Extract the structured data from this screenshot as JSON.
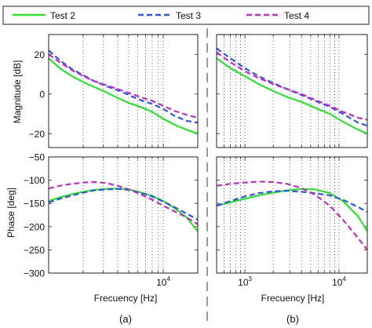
{
  "legend": {
    "placement": "top, across both columns",
    "entries": [
      {
        "label": "Test 2",
        "color": "#33dd33",
        "dash": "solid"
      },
      {
        "label": "Test 3",
        "color": "#3355dd",
        "dash": "dashed"
      },
      {
        "label": "Test 4",
        "color": "#bb33bb",
        "dash": "dashed"
      }
    ]
  },
  "separator": {
    "color": "#999999",
    "style": "dashed vertical"
  },
  "panels": [
    {
      "id": "a",
      "caption": "(a)",
      "xlabel": "Frecuency [Hz]"
    },
    {
      "id": "b",
      "caption": "(b)",
      "xlabel": "Frecuency [Hz]"
    }
  ],
  "chart_data": [
    {
      "panel": "a",
      "row": "magnitude",
      "type": "line",
      "ylabel": "Magnitude [dB]",
      "ylim": [
        -27,
        30
      ],
      "yticks": [
        20,
        0,
        -20
      ],
      "xscale": "log",
      "xlim": [
        1000,
        20000
      ],
      "xtick_labels": [],
      "grid": "dotted vertical",
      "x": [
        1000,
        1250,
        1600,
        2000,
        2500,
        3150,
        4000,
        5000,
        6300,
        8000,
        10000,
        12500,
        16000,
        20000
      ],
      "series": [
        {
          "name": "Test 2",
          "color": "#33dd33",
          "dash": "solid",
          "values": [
            18,
            13,
            9,
            6,
            3.5,
            1,
            -2,
            -4.5,
            -6.5,
            -9,
            -12.5,
            -15.5,
            -18,
            -20
          ]
        },
        {
          "name": "Test 3",
          "color": "#3355dd",
          "dash": "dashed",
          "values": [
            22,
            17,
            12.5,
            9.5,
            6.5,
            4,
            2,
            -0.5,
            -3,
            -5,
            -7.5,
            -11,
            -13.5,
            -14.5
          ]
        },
        {
          "name": "Test 4",
          "color": "#bb33bb",
          "dash": "dashed",
          "values": [
            20,
            16,
            12,
            9,
            6.5,
            4.5,
            2.5,
            0.5,
            -1.5,
            -3.5,
            -6,
            -8.5,
            -10.5,
            -12
          ]
        }
      ]
    },
    {
      "panel": "a",
      "row": "phase",
      "type": "line",
      "ylabel": "Phase [deg]",
      "ylim": [
        -300,
        -50
      ],
      "yticks": [
        -50,
        -100,
        -150,
        -200,
        -250,
        -300
      ],
      "xscale": "log",
      "xlim": [
        1000,
        20000
      ],
      "xtick_labels": [
        {
          "value": 10000,
          "base": "10",
          "exp": "4"
        }
      ],
      "grid": "dotted vertical",
      "x": [
        1000,
        1250,
        1600,
        2000,
        2500,
        3150,
        4000,
        5000,
        6300,
        8000,
        10000,
        12500,
        16000,
        20000
      ],
      "series": [
        {
          "name": "Test 2",
          "color": "#33dd33",
          "dash": "solid",
          "values": [
            -145,
            -137,
            -130,
            -125,
            -121,
            -119,
            -118,
            -120,
            -126,
            -134,
            -145,
            -160,
            -180,
            -210
          ]
        },
        {
          "name": "Test 3",
          "color": "#3355dd",
          "dash": "dashed",
          "values": [
            -148,
            -140,
            -133,
            -127,
            -122,
            -120,
            -119,
            -121,
            -127,
            -135,
            -146,
            -158,
            -172,
            -185
          ]
        },
        {
          "name": "Test 4",
          "color": "#bb33bb",
          "dash": "dashed",
          "values": [
            -118,
            -112,
            -108,
            -105,
            -104,
            -106,
            -112,
            -120,
            -130,
            -142,
            -155,
            -167,
            -180,
            -195
          ]
        }
      ]
    },
    {
      "panel": "b",
      "row": "magnitude",
      "type": "line",
      "ylim": [
        -27,
        30
      ],
      "yticks": [
        20,
        0,
        -20
      ],
      "ytick_labels_shown": false,
      "xscale": "log",
      "xlim": [
        500,
        20000
      ],
      "xtick_labels": [],
      "grid": "dotted vertical",
      "x": [
        500,
        700,
        1000,
        1400,
        2000,
        2800,
        4000,
        5600,
        8000,
        11000,
        16000,
        20000
      ],
      "series": [
        {
          "name": "Test 2",
          "color": "#33dd33",
          "dash": "solid",
          "values": [
            18,
            13,
            9,
            5,
            1.5,
            -1.5,
            -4,
            -7,
            -10,
            -14,
            -18,
            -20
          ]
        },
        {
          "name": "Test 3",
          "color": "#3355dd",
          "dash": "dashed",
          "values": [
            23,
            18,
            13,
            9,
            5.5,
            2.5,
            -0.5,
            -3.5,
            -6.5,
            -10,
            -14.5,
            -16
          ]
        },
        {
          "name": "Test 4",
          "color": "#bb33bb",
          "dash": "dashed",
          "values": [
            21,
            16,
            11.5,
            8,
            5,
            2.5,
            0,
            -3,
            -6,
            -9,
            -12,
            -13
          ]
        }
      ]
    },
    {
      "panel": "b",
      "row": "phase",
      "type": "line",
      "ylim": [
        -300,
        -50
      ],
      "yticks": [
        -50,
        -100,
        -150,
        -200,
        -250,
        -300
      ],
      "ytick_labels_shown": false,
      "xscale": "log",
      "xlim": [
        500,
        20000
      ],
      "xtick_labels": [
        {
          "value": 1000,
          "base": "10",
          "exp": "3"
        },
        {
          "value": 10000,
          "base": "10",
          "exp": "4"
        }
      ],
      "grid": "dotted vertical",
      "x": [
        500,
        700,
        1000,
        1400,
        2000,
        2800,
        4000,
        5600,
        8000,
        11000,
        16000,
        20000
      ],
      "series": [
        {
          "name": "Test 2",
          "color": "#33dd33",
          "dash": "solid",
          "values": [
            -155,
            -148,
            -140,
            -133,
            -127,
            -122,
            -119,
            -120,
            -128,
            -145,
            -178,
            -210
          ]
        },
        {
          "name": "Test 3",
          "color": "#3355dd",
          "dash": "dashed",
          "values": [
            -155,
            -145,
            -135,
            -128,
            -124,
            -123,
            -125,
            -128,
            -133,
            -142,
            -158,
            -168
          ]
        },
        {
          "name": "Test 4",
          "color": "#bb33bb",
          "dash": "dashed",
          "values": [
            -112,
            -108,
            -105,
            -103,
            -104,
            -108,
            -117,
            -132,
            -155,
            -185,
            -225,
            -250
          ]
        }
      ]
    }
  ]
}
